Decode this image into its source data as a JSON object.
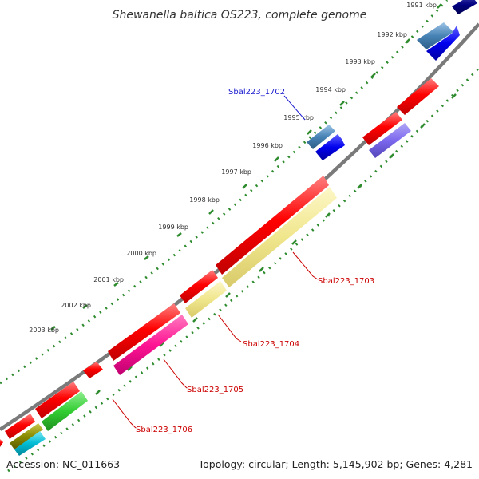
{
  "title": "Shewanella baltica OS223, complete genome",
  "footer": {
    "accession": "Accession: NC_011663",
    "stats": "Topology: circular; Length: 5,145,902 bp; Genes: 4,281"
  },
  "ticks": [
    "1991 kbp",
    "1992 kbp",
    "1993 kbp",
    "1994 kbp",
    "1995 kbp",
    "1996 kbp",
    "1997 kbp",
    "1998 kbp",
    "1999 kbp",
    "2000 kbp",
    "2001 kbp",
    "2002 kbp",
    "2003 kbp"
  ],
  "gene_labels": {
    "g1702": "Sbal223_1702",
    "g1703": "Sbal223_1703",
    "g1704": "Sbal223_1704",
    "g1705": "Sbal223_1705",
    "g1706": "Sbal223_1706"
  },
  "colors": {
    "backbone": "#7a7a7a",
    "tick_green": "#2e8b2e",
    "red_gene": "#ff0000",
    "blue_gene": "#0000ee",
    "steel_gene": "#4682b4",
    "yellow_gene": "#f0e68c",
    "magenta_gene": "#ff1493",
    "green_gene": "#32cd32",
    "purple_gene": "#7b68ee",
    "cyan_gene": "#00bcd4",
    "olive_gene": "#8b8b00",
    "navy_gene": "#000080"
  }
}
